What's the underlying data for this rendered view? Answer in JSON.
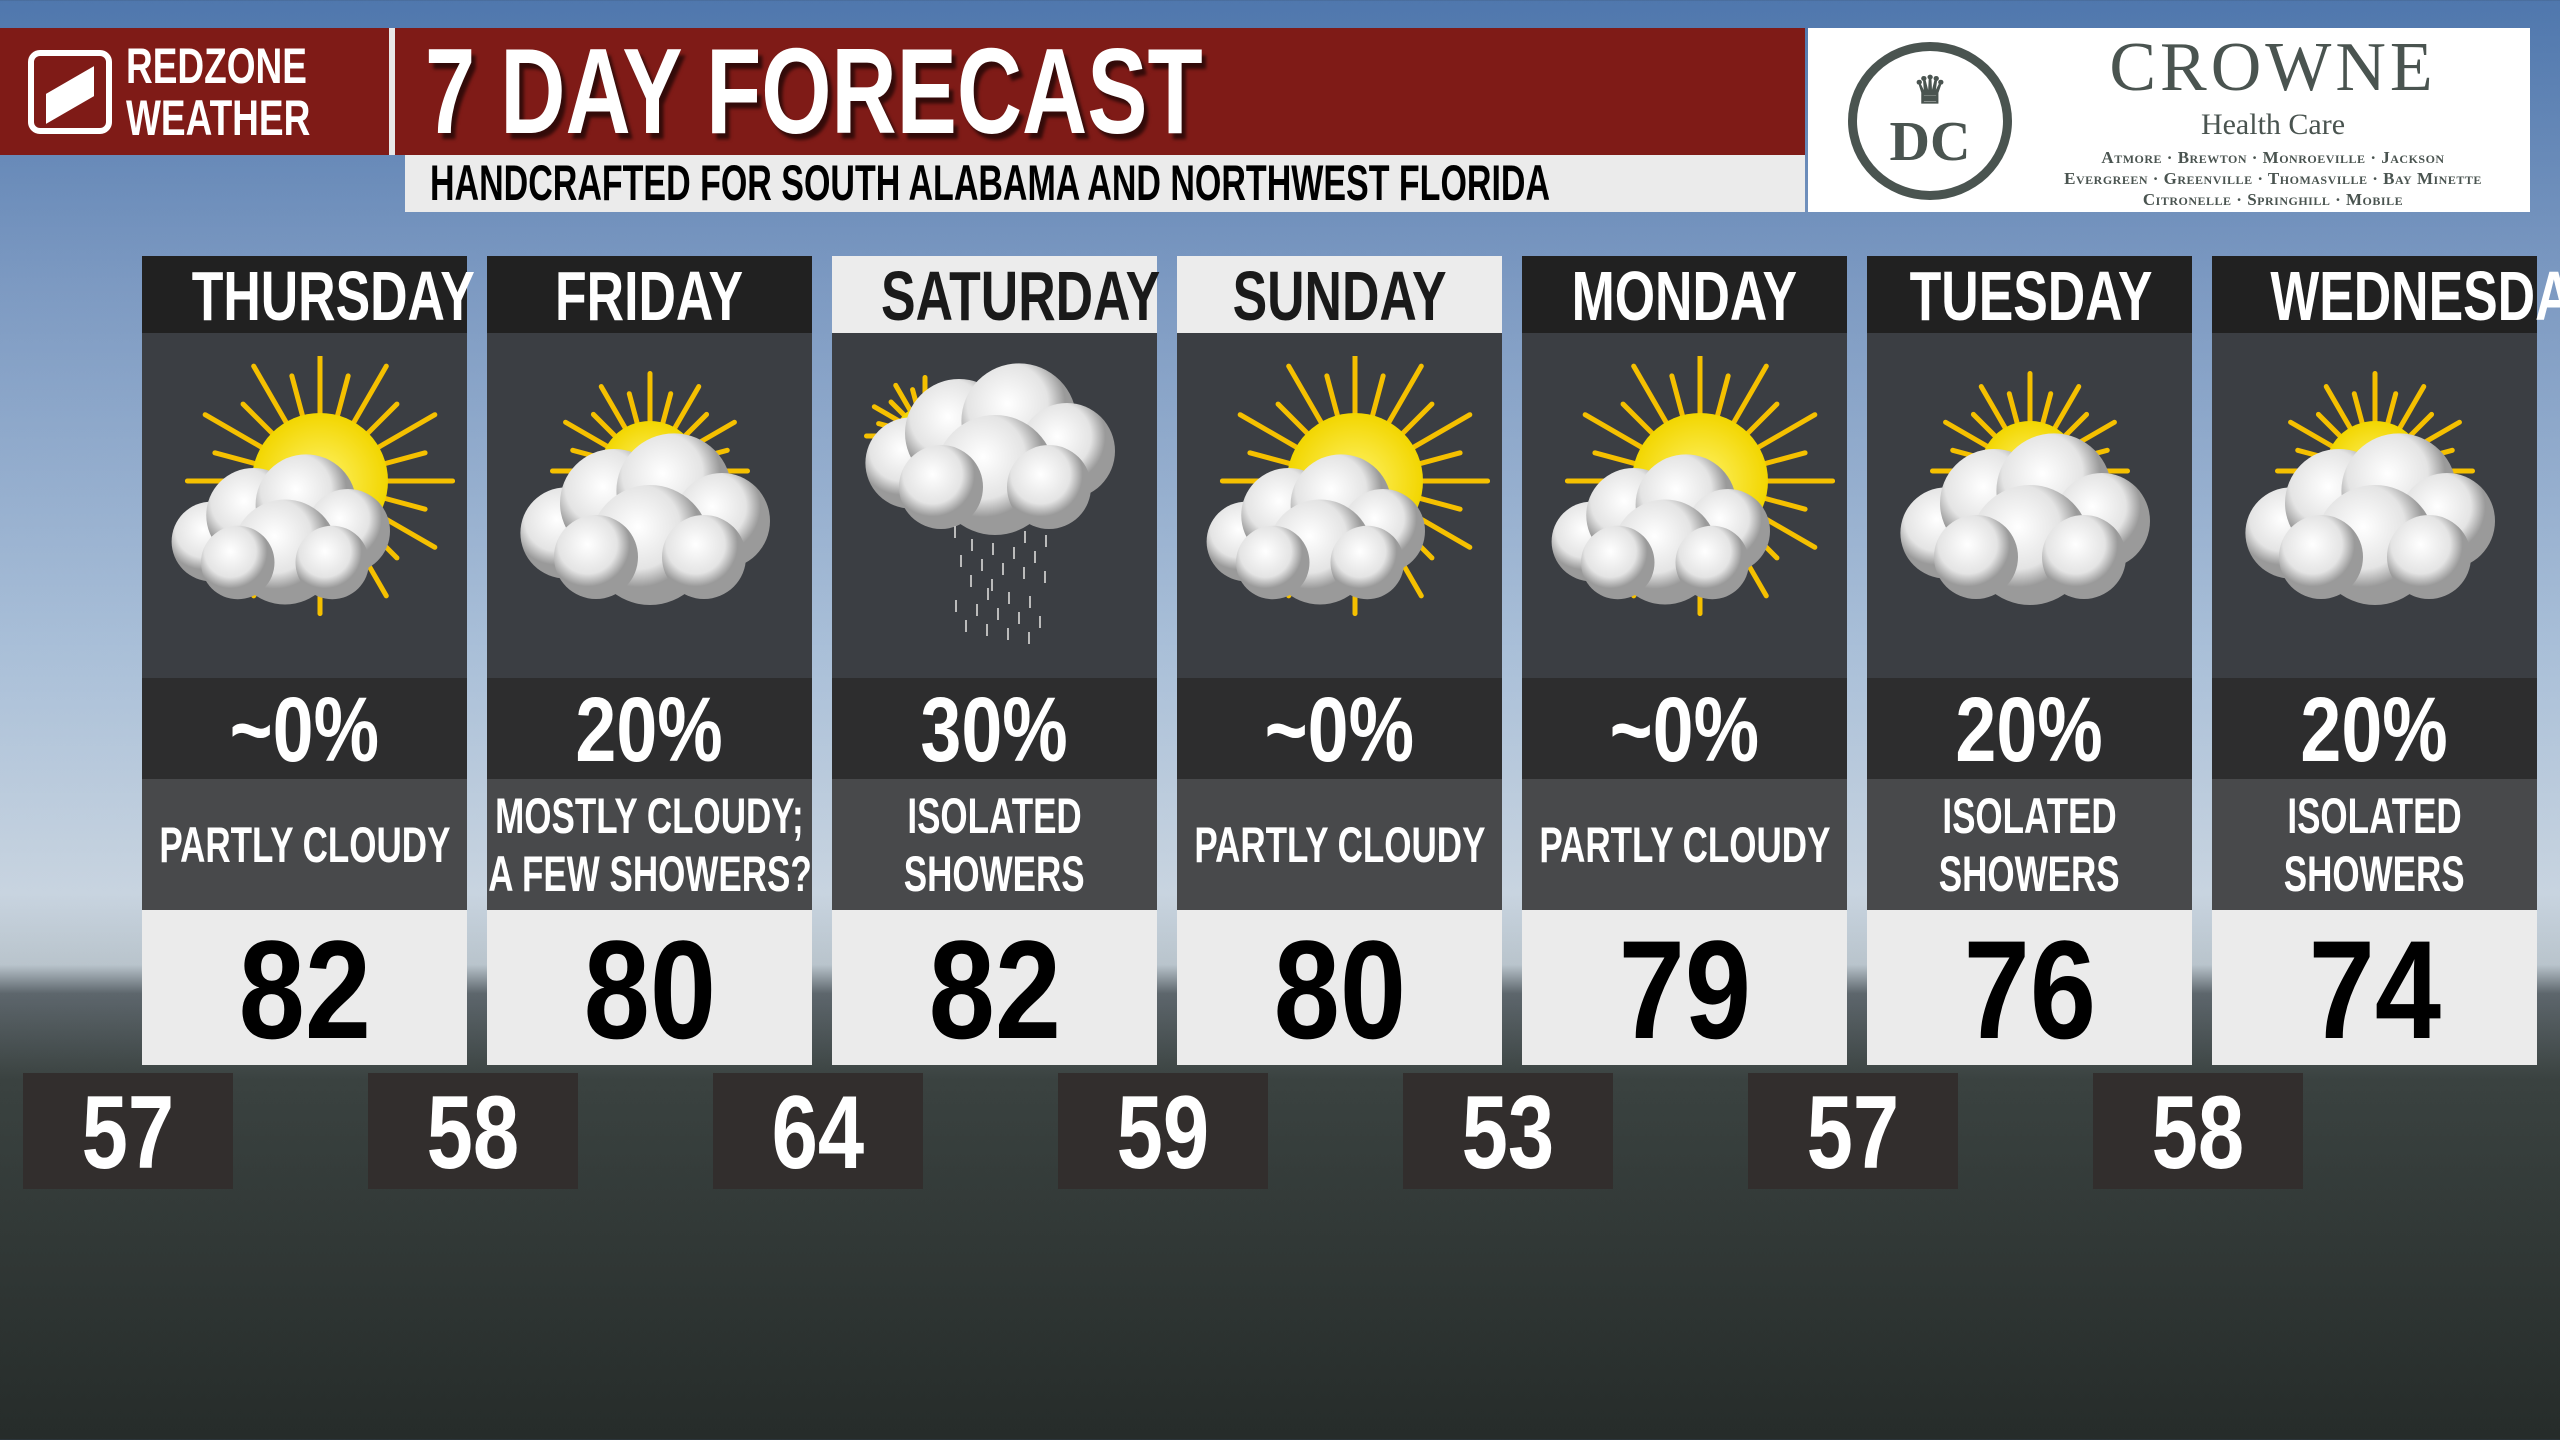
{
  "brand": {
    "line1": "REDZONE",
    "line2": "WEATHER"
  },
  "header": {
    "title": "7 DAY FORECAST",
    "subtitle": "HANDCRAFTED FOR SOUTH ALABAMA AND NORTHWEST FLORIDA"
  },
  "sponsor": {
    "monogram": "DC",
    "name": "CROWNE",
    "sub": "Health Care",
    "locations": [
      "Atmore · Brewton · Monroeville · Jackson",
      "Evergreen · Greenville · Thomasville · Bay Minette",
      "Citronelle · Springhill · Mobile"
    ]
  },
  "colors": {
    "header_red": "#7f1b17",
    "panel_dark": "#3b3e43",
    "high_bg": "#ebebeb",
    "low_bg": "#322e2d"
  },
  "days": [
    {
      "name": "THURSDAY",
      "icon": "partly-cloudy-icon",
      "pct": "~0%",
      "desc": [
        "PARTLY CLOUDY"
      ],
      "high": "82",
      "low": "57",
      "highlight": false
    },
    {
      "name": "FRIDAY",
      "icon": "mostly-cloudy-icon",
      "pct": "20%",
      "desc": [
        "MOSTLY CLOUDY;",
        "A FEW SHOWERS?"
      ],
      "high": "80",
      "low": "58",
      "highlight": false
    },
    {
      "name": "SATURDAY",
      "icon": "cloud-rain-icon",
      "pct": "30%",
      "desc": [
        "ISOLATED",
        "SHOWERS"
      ],
      "high": "82",
      "low": "64",
      "highlight": true
    },
    {
      "name": "SUNDAY",
      "icon": "partly-cloudy-icon",
      "pct": "~0%",
      "desc": [
        "PARTLY CLOUDY"
      ],
      "high": "80",
      "low": "59",
      "highlight": true
    },
    {
      "name": "MONDAY",
      "icon": "partly-cloudy-icon",
      "pct": "~0%",
      "desc": [
        "PARTLY CLOUDY"
      ],
      "high": "79",
      "low": "53",
      "highlight": false
    },
    {
      "name": "TUESDAY",
      "icon": "mostly-cloudy-icon",
      "pct": "20%",
      "desc": [
        "ISOLATED",
        "SHOWERS"
      ],
      "high": "76",
      "low": "57",
      "highlight": false
    },
    {
      "name": "WEDNESDAY",
      "icon": "mostly-cloudy-icon",
      "pct": "20%",
      "desc": [
        "ISOLATED",
        "SHOWERS"
      ],
      "high": "74",
      "low": "58",
      "highlight": false
    }
  ]
}
